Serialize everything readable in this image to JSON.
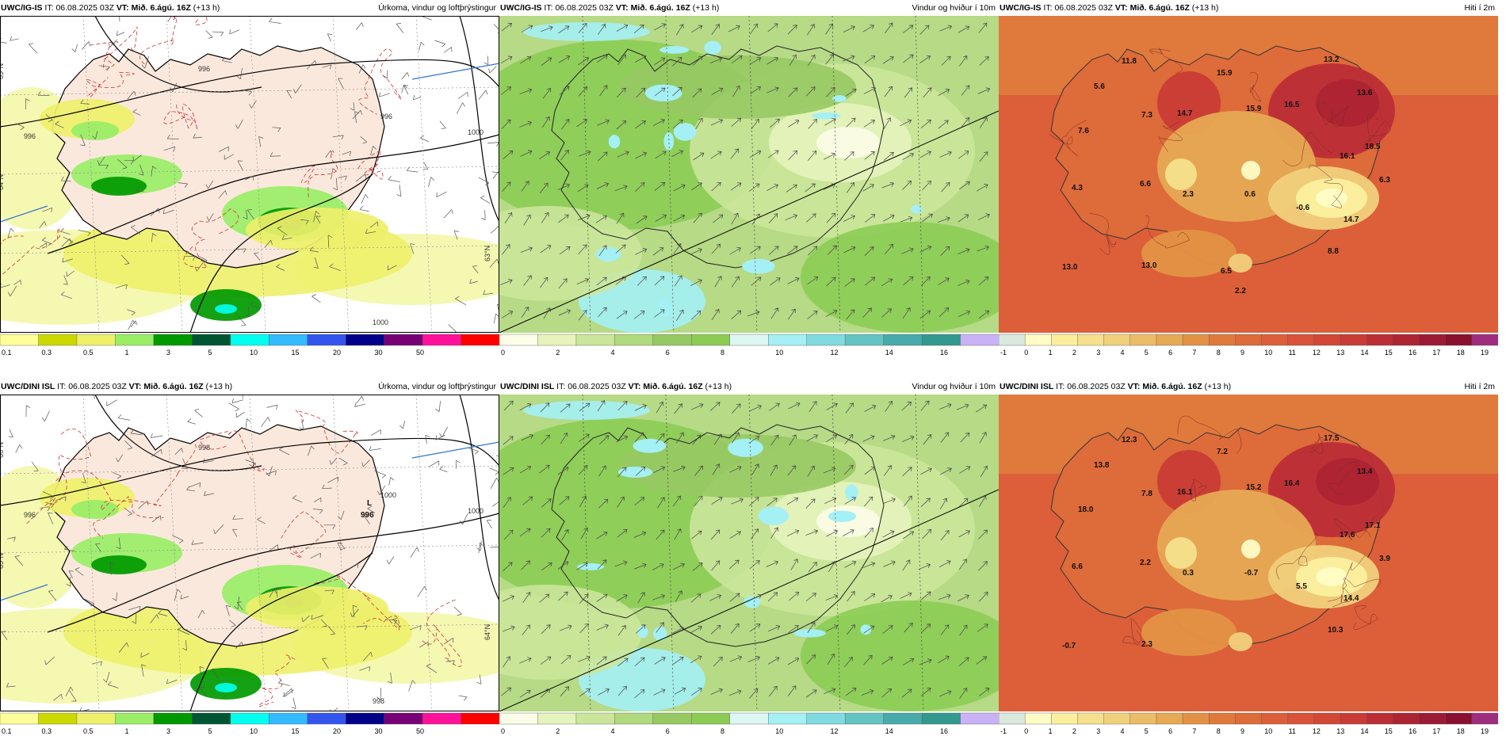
{
  "panels": [
    {
      "id": "p1",
      "model": "UWC/IG-IS",
      "it_label": "IT:",
      "it": "06.08.2025 03Z",
      "vt_label": "VT:",
      "vt": "Mið. 6.ágú. 16Z",
      "lead": "(+13 h)",
      "title": "Úrkoma, vindur og loftþrýstingur",
      "type": "precip",
      "isobars": [
        "996",
        "996",
        "996",
        "1000",
        "1000"
      ],
      "lat_labels": [
        "65°N",
        "64°N",
        "63°N"
      ],
      "lows": []
    },
    {
      "id": "p2",
      "model": "UWC/IG-IS",
      "it_label": "IT:",
      "it": "06.08.2025 03Z",
      "vt_label": "VT:",
      "vt": "Mið. 6.ágú. 16Z",
      "lead": "(+13 h)",
      "title": "Vindur og hviður í 10m",
      "type": "wind"
    },
    {
      "id": "p3",
      "model": "UWC/IG-IS",
      "it_label": "IT:",
      "it": "06.08.2025 03Z",
      "vt_label": "VT:",
      "vt": "Mið. 6.ágú. 16Z",
      "lead": "(+13 h)",
      "title": "Hiti í 2m",
      "type": "temp",
      "temps": [
        "11.8",
        "5.6",
        "7.6",
        "7.3",
        "15.9",
        "14.7",
        "15.9",
        "16.5",
        "13.2",
        "13.6",
        "18.5",
        "16.1",
        "6.3",
        "4.3",
        "6.6",
        "2.3",
        "0.6",
        "-0.6",
        "14.7",
        "8.8",
        "13.0",
        "13.0",
        "6.5",
        "2.2"
      ]
    },
    {
      "id": "p4",
      "model": "UWC/DINI ISL",
      "it_label": "IT:",
      "it": "06.08.2025 03Z",
      "vt_label": "VT:",
      "vt": "Mið. 6.ágú. 16Z",
      "lead": "(+13 h)",
      "title": "Úrkoma, vindur og loftþrýstingur",
      "type": "precip",
      "isobars": [
        "996",
        "998",
        "1000",
        "1000",
        "998"
      ],
      "lat_labels": [
        "66°N",
        "65°N",
        "64°N"
      ],
      "lows": [
        {
          "letter": "L",
          "value": "996"
        }
      ]
    },
    {
      "id": "p5",
      "model": "UWC/DINI ISL",
      "it_label": "IT:",
      "it": "06.08.2025 03Z",
      "vt_label": "VT:",
      "vt": "Mið. 6.ágú. 16Z",
      "lead": "(+13 h)",
      "title": "Vindur og hviður í 10m",
      "type": "wind"
    },
    {
      "id": "p6",
      "model": "UWC/DINI ISL",
      "it_label": "IT:",
      "it": "06.08.2025 03Z",
      "vt_label": "VT:",
      "vt": "Mið. 6.ágú. 16Z",
      "lead": "(+13 h)",
      "title": "Hiti í 2m",
      "type": "temp",
      "temps": [
        "12.3",
        "13.8",
        "18.0",
        "7.8",
        "7.2",
        "16.1",
        "15.2",
        "16.4",
        "17.5",
        "13.4",
        "17.1",
        "17.6",
        "3.9",
        "6.6",
        "2.2",
        "0.3",
        "-0.7",
        "5.5",
        "14.4",
        "10.3",
        "-0.7",
        "2.3"
      ]
    }
  ],
  "legends": {
    "precip": {
      "colors": [
        "#ffff99",
        "#ccd900",
        "#eef06a",
        "#99ee66",
        "#009900",
        "#005533",
        "#00ffee",
        "#33bbff",
        "#3355ee",
        "#000088",
        "#770077",
        "#ff1199",
        "#ff0000"
      ],
      "labels": [
        "0.1",
        "0.3",
        "0.5",
        "1",
        "3",
        "5",
        "10",
        "15",
        "20",
        "30",
        "50"
      ]
    },
    "wind": {
      "colors": [
        "#fbfde8",
        "#e6f3bc",
        "#cbe69a",
        "#b1d97d",
        "#97c963",
        "#8ccc55",
        "#ddf7f2",
        "#a4f0f4",
        "#7fdbe0",
        "#64c4c2",
        "#48aaaa",
        "#33998f",
        "#c9b2f5"
      ],
      "labels": [
        "0",
        "2",
        "4",
        "6",
        "8",
        "10",
        "12",
        "14",
        "16"
      ]
    },
    "temp": {
      "colors": [
        "#dbe8de",
        "#fffcc6",
        "#fbef9e",
        "#f6e08c",
        "#f0d07b",
        "#ebbd67",
        "#e6a954",
        "#e39245",
        "#e0793c",
        "#de6b3a",
        "#dc5f3a",
        "#d95239",
        "#d34736",
        "#c93c36",
        "#bb2e36",
        "#ad2433",
        "#9c1a33",
        "#8a1030",
        "#9e2d7f"
      ],
      "labels": [
        "-1",
        "0",
        "1",
        "2",
        "3",
        "4",
        "5",
        "6",
        "7",
        "8",
        "9",
        "10",
        "11",
        "12",
        "13",
        "14",
        "15",
        "16",
        "17",
        "18",
        "19"
      ]
    }
  }
}
